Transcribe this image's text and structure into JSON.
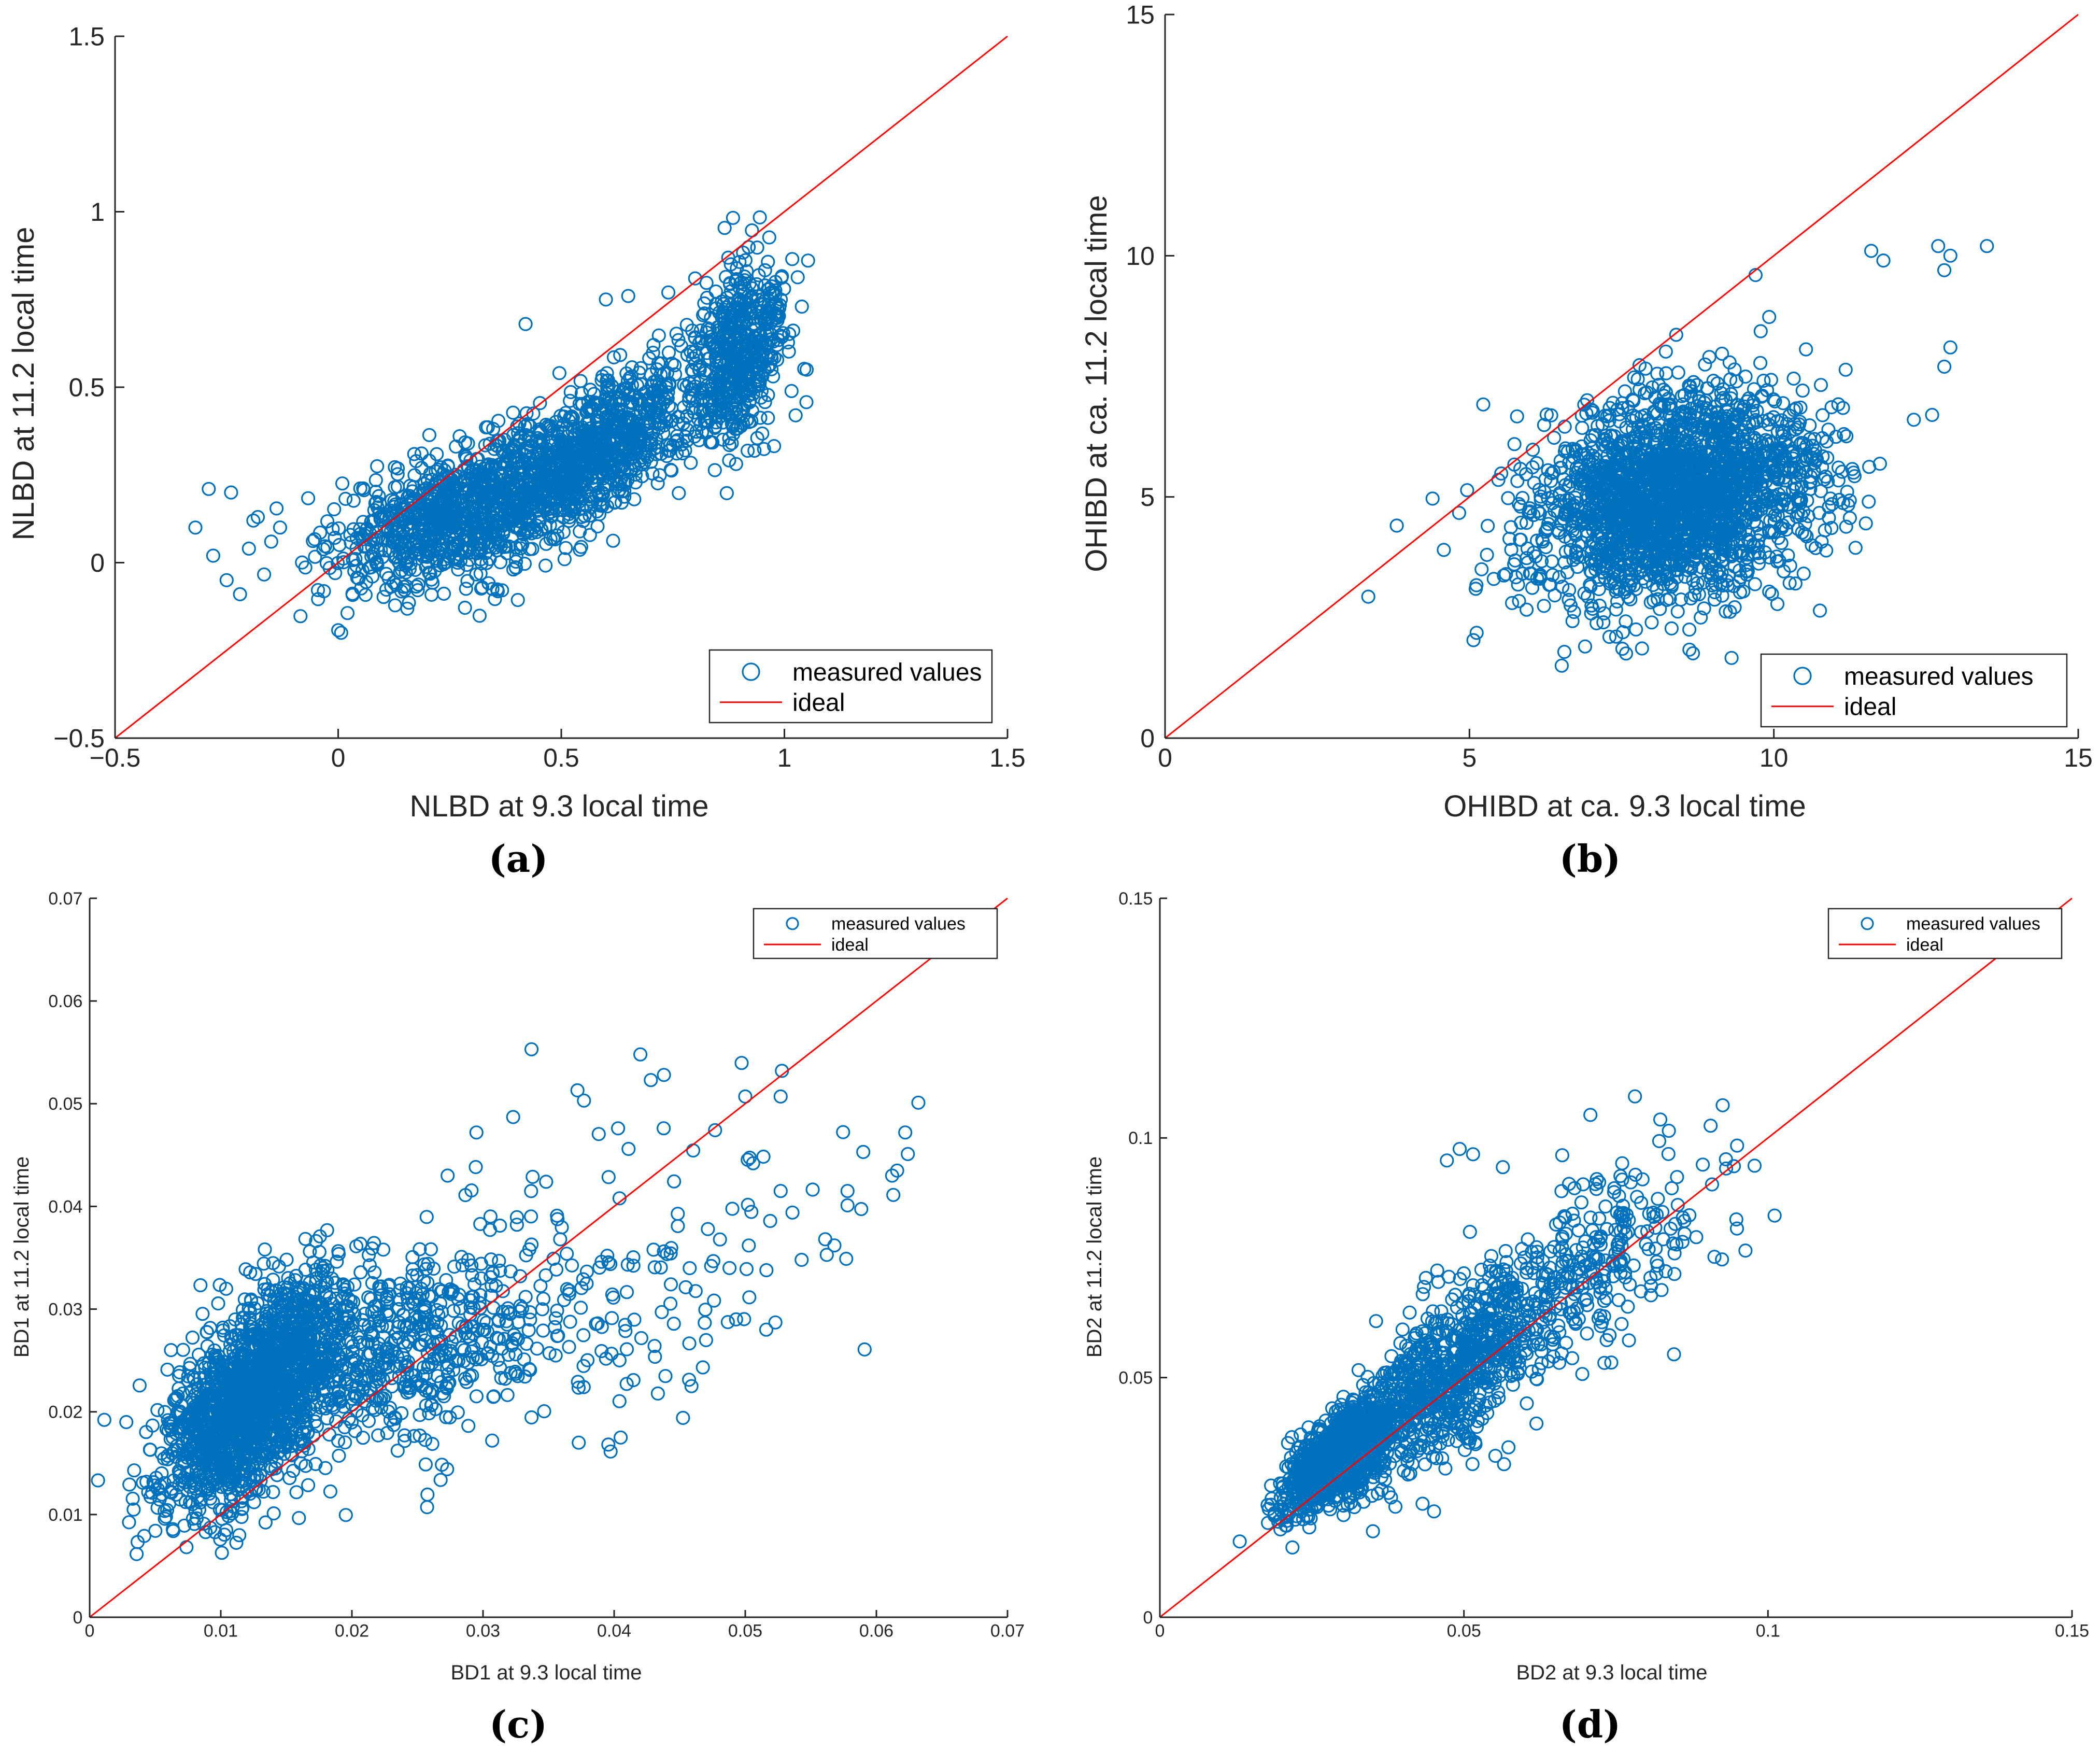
{
  "colors": {
    "measured": "#0072BD",
    "ideal": "#FF0000",
    "axis": "#262626"
  },
  "legend": {
    "measured_label": "measured values",
    "ideal_label": "ideal"
  },
  "captions": [
    "(a)",
    "(b)",
    "(c)",
    "(d)"
  ],
  "chart_data": [
    {
      "panel": "a",
      "type": "scatter",
      "xlabel": "NLBD at 9.3 local time",
      "ylabel": "NLBD at 11.2 local time",
      "xlim": [
        -0.5,
        1.5
      ],
      "ylim": [
        -0.5,
        1.5
      ],
      "xticks": [
        -0.5,
        0,
        0.5,
        1,
        1.5
      ],
      "xtick_labels": [
        "−0.5",
        "0",
        "0.5",
        "1",
        "1.5"
      ],
      "yticks": [
        -0.5,
        0,
        0.5,
        1,
        1.5
      ],
      "ytick_labels": [
        "−0.5",
        "0",
        "0.5",
        "1",
        "1.5"
      ],
      "legend_position": "bottom-right",
      "ideal_line": [
        [
          -0.5,
          -0.5
        ],
        [
          1.5,
          1.5
        ]
      ],
      "clusters": [
        {
          "n": 950,
          "cx": 0.28,
          "cy": 0.14,
          "sx": 0.14,
          "sy": 0.09,
          "slope": 0.3
        },
        {
          "n": 900,
          "cx": 0.58,
          "cy": 0.33,
          "sx": 0.13,
          "sy": 0.09,
          "slope": 0.6
        },
        {
          "n": 500,
          "cx": 0.9,
          "cy": 0.6,
          "sx": 0.05,
          "sy": 0.12,
          "slope": 0.6
        }
      ],
      "outliers": [
        [
          -0.32,
          0.1
        ],
        [
          -0.29,
          0.21
        ],
        [
          -0.28,
          0.02
        ],
        [
          -0.25,
          -0.05
        ],
        [
          -0.24,
          0.2
        ],
        [
          -0.22,
          -0.09
        ],
        [
          -0.2,
          0.04
        ],
        [
          -0.19,
          0.12
        ],
        [
          -0.18,
          0.13
        ],
        [
          -0.15,
          0.06
        ],
        [
          0.6,
          0.75
        ],
        [
          0.65,
          0.76
        ],
        [
          0.42,
          0.68
        ],
        [
          1.05,
          0.55
        ],
        [
          0.98,
          0.8
        ],
        [
          0.74,
          0.77
        ],
        [
          0.8,
          0.81
        ],
        [
          0.88,
          0.85
        ]
      ]
    },
    {
      "panel": "b",
      "type": "scatter",
      "xlabel": "OHIBD at ca. 9.3 local time",
      "ylabel": "OHIBD at ca. 11.2 local time",
      "xlim": [
        0,
        15
      ],
      "ylim": [
        0,
        15
      ],
      "xticks": [
        0,
        5,
        10,
        15
      ],
      "xtick_labels": [
        "0",
        "5",
        "10",
        "15"
      ],
      "yticks": [
        0,
        5,
        10,
        15
      ],
      "ytick_labels": [
        "0",
        "5",
        "10",
        "15"
      ],
      "legend_position": "bottom-right",
      "ideal_line": [
        [
          0,
          0
        ],
        [
          15,
          15
        ]
      ],
      "clusters": [
        {
          "n": 2300,
          "cx": 8.4,
          "cy": 5.0,
          "sx": 1.15,
          "sy": 1.05,
          "slope": 0.22
        }
      ],
      "outliers": [
        [
          5.2,
          3.5
        ],
        [
          5.3,
          4.4
        ],
        [
          5.4,
          3.3
        ],
        [
          5.6,
          3.4
        ],
        [
          5.7,
          2.8
        ],
        [
          12.7,
          10.2
        ],
        [
          12.9,
          10.0
        ],
        [
          13.5,
          10.2
        ],
        [
          12.8,
          9.7
        ],
        [
          11.6,
          10.1
        ],
        [
          11.8,
          9.9
        ],
        [
          9.7,
          9.6
        ],
        [
          12.3,
          6.6
        ],
        [
          12.6,
          6.7
        ],
        [
          12.8,
          7.7
        ],
        [
          12.9,
          8.1
        ],
        [
          6.9,
          1.9
        ],
        [
          7.3,
          2.1
        ],
        [
          8.8,
          2.5
        ],
        [
          7.2,
          2.4
        ]
      ]
    },
    {
      "panel": "c",
      "type": "scatter",
      "xlabel": "BD1 at 9.3 local time",
      "ylabel": "BD1 at 11.2 local time",
      "xlim": [
        0,
        0.07
      ],
      "ylim": [
        0,
        0.07
      ],
      "xticks": [
        0,
        0.01,
        0.02,
        0.03,
        0.04,
        0.05,
        0.06,
        0.07
      ],
      "xtick_labels": [
        "0",
        "0.01",
        "0.02",
        "0.03",
        "0.04",
        "0.05",
        "0.06",
        "0.07"
      ],
      "yticks": [
        0,
        0.01,
        0.02,
        0.03,
        0.04,
        0.05,
        0.06,
        0.07
      ],
      "ytick_labels": [
        "0",
        "0.01",
        "0.02",
        "0.03",
        "0.04",
        "0.05",
        "0.06",
        "0.07"
      ],
      "legend_position": "top-right",
      "ideal_line": [
        [
          0,
          0
        ],
        [
          0.07,
          0.07
        ]
      ],
      "clusters": [
        {
          "n": 1800,
          "cx": 0.0125,
          "cy": 0.0215,
          "sx": 0.0035,
          "sy": 0.0045,
          "slope": 0.9
        },
        {
          "n": 500,
          "cx": 0.024,
          "cy": 0.026,
          "sx": 0.005,
          "sy": 0.0045,
          "slope": 0.4
        },
        {
          "n": 160,
          "cx": 0.039,
          "cy": 0.031,
          "sx": 0.009,
          "sy": 0.007,
          "slope": 0.4
        }
      ],
      "outliers": [
        [
          0.0337,
          0.0553
        ],
        [
          0.042,
          0.0548
        ],
        [
          0.0428,
          0.0523
        ],
        [
          0.0438,
          0.0528
        ],
        [
          0.0372,
          0.0513
        ],
        [
          0.0377,
          0.0503
        ],
        [
          0.0323,
          0.0487
        ],
        [
          0.0295,
          0.0472
        ],
        [
          0.05,
          0.0507
        ],
        [
          0.0528,
          0.0532
        ],
        [
          0.0527,
          0.0507
        ],
        [
          0.0632,
          0.0501
        ],
        [
          0.059,
          0.0453
        ],
        [
          0.0622,
          0.0472
        ],
        [
          0.0624,
          0.0451
        ],
        [
          0.0612,
          0.043
        ],
        [
          0.0578,
          0.0415
        ],
        [
          0.0578,
          0.0401
        ],
        [
          0.0568,
          0.0362
        ],
        [
          0.0577,
          0.0349
        ],
        [
          0.0561,
          0.0368
        ],
        [
          0.0543,
          0.0348
        ],
        [
          0.0536,
          0.0394
        ],
        [
          0.0527,
          0.0415
        ],
        [
          0.0506,
          0.0442
        ],
        [
          0.0474,
          0.0342
        ],
        [
          0.0488,
          0.034
        ],
        [
          0.0501,
          0.0339
        ],
        [
          0.0523,
          0.0287
        ],
        [
          0.0516,
          0.028
        ],
        [
          0.0493,
          0.029
        ],
        [
          0.0373,
          0.017
        ],
        [
          0.0405,
          0.0175
        ],
        [
          0.0307,
          0.0172
        ],
        [
          0.0273,
          0.043
        ],
        [
          0.0403,
          0.0476
        ],
        [
          0.0411,
          0.0456
        ]
      ]
    },
    {
      "panel": "d",
      "type": "scatter",
      "xlabel": "BD2 at 9.3 local time",
      "ylabel": "BD2 at 11.2 local time",
      "xlim": [
        0,
        0.15
      ],
      "ylim": [
        0,
        0.15
      ],
      "xticks": [
        0,
        0.05,
        0.1,
        0.15
      ],
      "xtick_labels": [
        "0",
        "0.05",
        "0.1",
        "0.15"
      ],
      "yticks": [
        0,
        0.05,
        0.1,
        0.15
      ],
      "ytick_labels": [
        "0",
        "0.05",
        "0.1",
        "0.15"
      ],
      "legend_position": "top-right",
      "ideal_line": [
        [
          0,
          0
        ],
        [
          0.15,
          0.15
        ]
      ],
      "clusters": [
        {
          "n": 1300,
          "cx": 0.03,
          "cy": 0.034,
          "sx": 0.0045,
          "sy": 0.004,
          "slope": 0.85
        },
        {
          "n": 700,
          "cx": 0.047,
          "cy": 0.05,
          "sx": 0.008,
          "sy": 0.008,
          "slope": 0.9
        },
        {
          "n": 330,
          "cx": 0.068,
          "cy": 0.07,
          "sx": 0.011,
          "sy": 0.01,
          "slope": 0.85
        }
      ],
      "outliers": [
        [
          0.0708,
          0.1048
        ],
        [
          0.0837,
          0.1015
        ],
        [
          0.1011,
          0.0838
        ],
        [
          0.0944,
          0.0941
        ],
        [
          0.0908,
          0.0903
        ],
        [
          0.0963,
          0.0765
        ],
        [
          0.0948,
          0.083
        ],
        [
          0.0949,
          0.0811
        ],
        [
          0.0912,
          0.0752
        ],
        [
          0.0493,
          0.0977
        ],
        [
          0.0515,
          0.0966
        ],
        [
          0.0472,
          0.0953
        ],
        [
          0.0564,
          0.0939
        ],
        [
          0.0199,
          0.0249
        ],
        [
          0.0203,
          0.0273
        ],
        [
          0.0314,
          0.0239
        ],
        [
          0.0335,
          0.0241
        ]
      ]
    }
  ]
}
